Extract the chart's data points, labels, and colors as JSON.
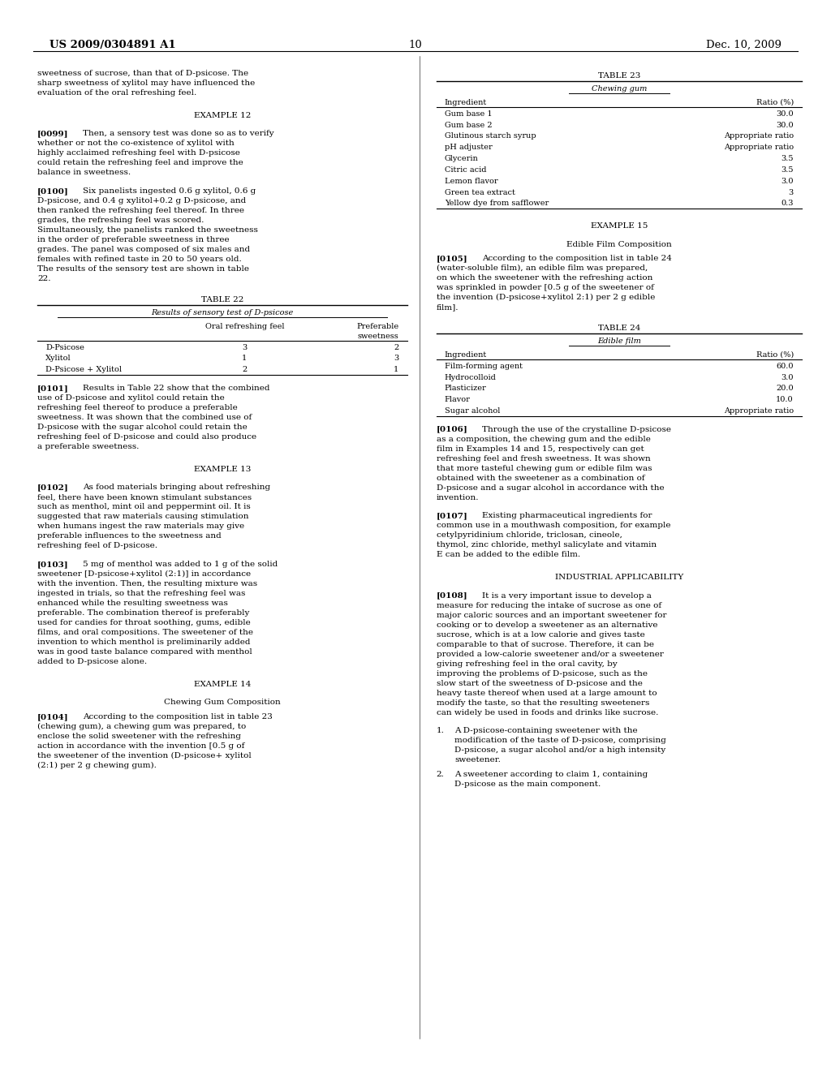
{
  "bg_color": "#ffffff",
  "header_left": "US 2009/0304891 A1",
  "header_right": "Dec. 10, 2009",
  "header_center": "10",
  "left_blocks": [
    {
      "type": "paragraph",
      "text": "sweetness of sucrose, than that of D-psicose. The sharp sweetness of xylitol may have influenced the evaluation of the oral refreshing feel."
    },
    {
      "type": "example_heading",
      "text": "EXAMPLE 12"
    },
    {
      "type": "paragraph_tagged",
      "tag": "[0099]",
      "text": "Then, a sensory test was done so as to verify whether or not the co-existence of xylitol with highly acclaimed refreshing feel with D-psicose could retain the refreshing feel and improve the balance in sweetness."
    },
    {
      "type": "paragraph_tagged",
      "tag": "[0100]",
      "text": "Six panelists ingested 0.6 g xylitol, 0.6 g D-psicose, and 0.4 g xylitol+0.2 g D-psicose, and then ranked the refreshing feel thereof. In three grades, the refreshing feel was scored. Simultaneously, the panelists ranked the sweetness in the order of preferable sweetness in three grades. The panel was composed of six males and females with refined taste in 20 to 50 years old. The results of the sensory test are shown in table 22."
    },
    {
      "type": "table",
      "title": "TABLE 22",
      "subtitle": "Results of sensory test of D-psicose",
      "subtitle_underline": true,
      "col_headers": [
        "",
        "Oral refreshing feel",
        "Preferable\nsweetness"
      ],
      "rows": [
        [
          "D-Psicose",
          "3",
          "2"
        ],
        [
          "Xylitol",
          "1",
          "3"
        ],
        [
          "D-Psicose + Xylitol",
          "2",
          "1"
        ]
      ]
    },
    {
      "type": "paragraph_tagged",
      "tag": "[0101]",
      "text": "Results in Table 22 show that the combined use of D-psicose and xylitol could retain the refreshing feel thereof to produce a preferable sweetness. It was shown that the combined use of D-psicose with the sugar alcohol could retain the refreshing feel of D-psicose and could also produce a preferable sweetness."
    },
    {
      "type": "example_heading",
      "text": "EXAMPLE 13"
    },
    {
      "type": "paragraph_tagged",
      "tag": "[0102]",
      "text": "As food materials bringing about refreshing feel, there have been known stimulant substances such as menthol, mint oil and peppermint oil. It is suggested that raw materials causing stimulation when humans ingest the raw materials may give preferable influences to the sweetness and refreshing feel of D-psicose."
    },
    {
      "type": "paragraph_tagged",
      "tag": "[0103]",
      "text": "5 mg of menthol was added to 1 g of the solid sweetener [D-psicose+xylitol (2:1)] in accordance with the invention. Then, the resulting mixture was ingested in trials, so that the refreshing feel was enhanced while the resulting sweetness was preferable. The combination thereof is preferably used for candies for throat soothing, gums, edible films, and oral compositions. The sweetener of the invention to which menthol is preliminarily added was in good taste balance compared with menthol added to D-psicose alone."
    },
    {
      "type": "example_heading",
      "text": "EXAMPLE 14"
    },
    {
      "type": "subheading",
      "text": "Chewing Gum Composition"
    },
    {
      "type": "paragraph_tagged",
      "tag": "[0104]",
      "text": "According to the composition list in table 23 (chewing gum), a chewing gum was prepared, to enclose the solid sweetener with the refreshing action in accordance with the invention [0.5 g of the sweetener of the invention (D-psicose+ xylitol (2:1) per 2 g chewing gum)."
    }
  ],
  "right_blocks": [
    {
      "type": "table",
      "title": "TABLE 23",
      "subtitle": "Chewing gum",
      "subtitle_underline": true,
      "col_headers": [
        "Ingredient",
        "Ratio (%)"
      ],
      "rows": [
        [
          "Gum base 1",
          "30.0"
        ],
        [
          "Gum base 2",
          "30.0"
        ],
        [
          "Glutinous starch syrup",
          "Appropriate ratio"
        ],
        [
          "pH adjuster",
          "Appropriate ratio"
        ],
        [
          "Glycerin",
          "3.5"
        ],
        [
          "Citric acid",
          "3.5"
        ],
        [
          "Lemon flavor",
          "3.0"
        ],
        [
          "Green tea extract",
          "3"
        ],
        [
          "Yellow dye from safflower",
          "0.3"
        ]
      ]
    },
    {
      "type": "example_heading",
      "text": "EXAMPLE 15"
    },
    {
      "type": "subheading",
      "text": "Edible Film Composition"
    },
    {
      "type": "paragraph_tagged",
      "tag": "[0105]",
      "text": "According to the composition list in table 24 (water-soluble film), an edible film was prepared, on which the sweetener with the refreshing action was sprinkled in powder [0.5 g of the sweetener of the invention (D-psicose+xylitol 2:1) per 2 g edible film]."
    },
    {
      "type": "table",
      "title": "TABLE 24",
      "subtitle": "Edible film",
      "subtitle_underline": true,
      "col_headers": [
        "Ingredient",
        "Ratio (%)"
      ],
      "rows": [
        [
          "Film-forming agent",
          "60.0"
        ],
        [
          "Hydrocolloid",
          "3.0"
        ],
        [
          "Plasticizer",
          "20.0"
        ],
        [
          "Flavor",
          "10.0"
        ],
        [
          "Sugar alcohol",
          "Appropriate ratio"
        ]
      ]
    },
    {
      "type": "paragraph_tagged",
      "tag": "[0106]",
      "text": "Through the use of the crystalline D-psicose as a composition, the chewing gum and the edible film in Examples 14 and 15, respectively can get refreshing feel and fresh sweetness. It was shown that more tasteful chewing gum or edible film was obtained with the sweetener as a combination of D-psicose and a sugar alcohol in accordance with the invention."
    },
    {
      "type": "paragraph_tagged",
      "tag": "[0107]",
      "text": "Existing pharmaceutical ingredients for common use in a mouthwash composition, for example cetylpyridinium chloride, triclosan, cineole, thymol, zinc chloride, methyl salicylate and vitamin E can be added to the edible film."
    },
    {
      "type": "example_heading",
      "text": "INDUSTRIAL APPLICABILITY"
    },
    {
      "type": "paragraph_tagged",
      "tag": "[0108]",
      "text": "It is a very important issue to develop a measure for reducing the intake of sucrose as one of major caloric sources and an important sweetener for cooking or to develop a sweetener as an alternative sucrose, which is at a low calorie and gives taste comparable to that of sucrose. Therefore, it can be provided a low-calorie sweetener and/or a sweetener giving refreshing feel in the oral cavity, by improving the problems of D-psicose, such as the slow start of the sweetness of D-psicose and the heavy taste thereof when used at a large amount to modify the taste, so that the resulting sweeteners can widely be used in foods and drinks like sucrose."
    },
    {
      "type": "numbered_paragraph",
      "number": "1.",
      "text": "A D-psicose-containing sweetener with the modification of the taste of D-psicose, comprising D-psicose, a sugar alcohol and/or a high intensity sweetener."
    },
    {
      "type": "numbered_paragraph",
      "number": "2.",
      "text": "A sweetener according to claim 1, containing D-psicose as the main component."
    }
  ]
}
